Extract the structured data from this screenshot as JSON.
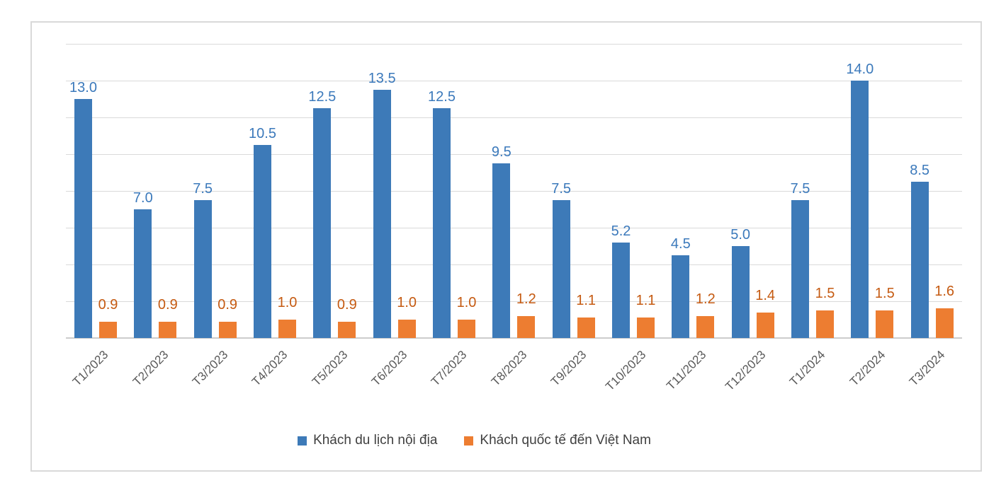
{
  "chart_data": {
    "type": "bar",
    "title": "",
    "xlabel": "",
    "ylabel": "",
    "categories": [
      "T1/2023",
      "T2/2023",
      "T3/2023",
      "T4/2023",
      "T5/2023",
      "T6/2023",
      "T7/2023",
      "T8/2023",
      "T9/2023",
      "T10/2023",
      "T11/2023",
      "T12/2023",
      "T1/2024",
      "T2/2024",
      "T3/2024"
    ],
    "series": [
      {
        "name": "Khách du lịch nội địa",
        "key": "domestic-tourists",
        "color": "#3d7ab8",
        "label_color": "#3b79bb",
        "values": [
          13.0,
          7.0,
          7.5,
          10.5,
          12.5,
          13.5,
          12.5,
          9.5,
          7.5,
          5.2,
          4.5,
          5.0,
          7.5,
          14.0,
          8.5
        ],
        "labels": [
          "13.0",
          "7.0",
          "7.5",
          "10.5",
          "12.5",
          "13.5",
          "12.5",
          "9.5",
          "7.5",
          "5.2",
          "4.5",
          "5.0",
          "7.5",
          "14.0",
          "8.5"
        ]
      },
      {
        "name": "Khách quốc tế đến Việt Nam",
        "key": "international-visitors",
        "color": "#ed7d31",
        "label_color": "#c55a11",
        "values": [
          0.9,
          0.9,
          0.9,
          1.0,
          0.9,
          1.0,
          1.0,
          1.2,
          1.1,
          1.1,
          1.2,
          1.4,
          1.5,
          1.5,
          1.6
        ],
        "labels": [
          "0.9",
          "0.9",
          "0.9",
          "1.0",
          "0.9",
          "1.0",
          "1.0",
          "1.2",
          "1.1",
          "1.1",
          "1.2",
          "1.4",
          "1.5",
          "1.5",
          "1.6"
        ]
      }
    ],
    "ylim": [
      0,
      16
    ],
    "grid_step": 2,
    "grid": true,
    "y_axis_labels_visible": false,
    "legend_position": "bottom",
    "value_label_decimals": 1,
    "gridline_color": "#dadada",
    "axis_line_color": "#cccccc",
    "axis_text_color": "#595959",
    "legend_text_color": "#404040"
  }
}
